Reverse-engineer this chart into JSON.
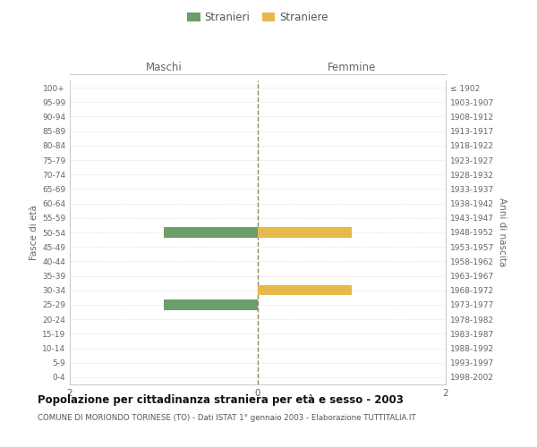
{
  "age_groups": [
    "100+",
    "95-99",
    "90-94",
    "85-89",
    "80-84",
    "75-79",
    "70-74",
    "65-69",
    "60-64",
    "55-59",
    "50-54",
    "45-49",
    "40-44",
    "35-39",
    "30-34",
    "25-29",
    "20-24",
    "15-19",
    "10-14",
    "5-9",
    "0-4"
  ],
  "birth_years": [
    "≤ 1902",
    "1903-1907",
    "1908-1912",
    "1913-1917",
    "1918-1922",
    "1923-1927",
    "1928-1932",
    "1933-1937",
    "1938-1942",
    "1943-1947",
    "1948-1952",
    "1953-1957",
    "1958-1962",
    "1963-1967",
    "1968-1972",
    "1973-1977",
    "1978-1982",
    "1983-1987",
    "1988-1992",
    "1993-1997",
    "1998-2002"
  ],
  "males": [
    0,
    0,
    0,
    0,
    0,
    0,
    0,
    0,
    0,
    0,
    1,
    0,
    0,
    0,
    0,
    1,
    0,
    0,
    0,
    0,
    0
  ],
  "females": [
    0,
    0,
    0,
    0,
    0,
    0,
    0,
    0,
    0,
    0,
    1,
    0,
    0,
    0,
    1,
    0,
    0,
    0,
    0,
    0,
    0
  ],
  "male_color": "#6b9e6b",
  "female_color": "#e8b84b",
  "xlim": 2,
  "grid_color": "#cccccc",
  "center_line_color": "#8b8b5a",
  "title": "Popolazione per cittadinanza straniera per età e sesso - 2003",
  "subtitle": "COMUNE DI MORIONDO TORINESE (TO) - Dati ISTAT 1° gennaio 2003 - Elaborazione TUTTITALIA.IT",
  "legend_stranieri": "Stranieri",
  "legend_straniere": "Straniere",
  "ylabel_left": "Fasce di età",
  "ylabel_right": "Anni di nascita",
  "header_maschi": "Maschi",
  "header_femmine": "Femmine",
  "bar_height": 0.7
}
